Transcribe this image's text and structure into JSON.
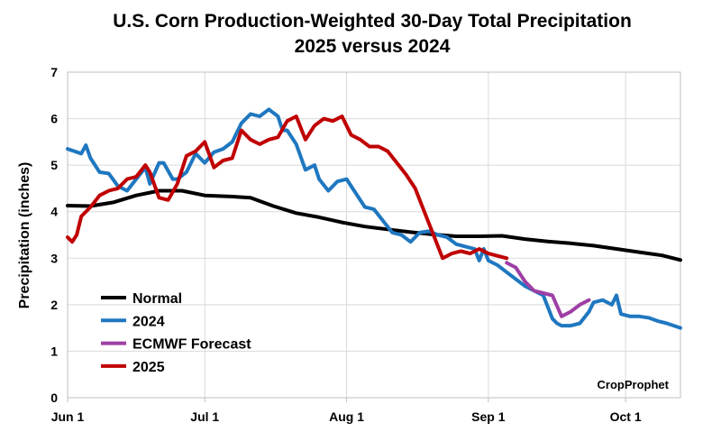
{
  "chart_data": {
    "type": "line",
    "title": "U.S. Corn Production-Weighted 30-Day Total Precipitation",
    "subtitle": "2025 versus 2024",
    "xlabel": "",
    "ylabel": "Precipitation (inches)",
    "ylim": [
      0,
      7
    ],
    "yticks": [
      0,
      1,
      2,
      3,
      4,
      5,
      6,
      7
    ],
    "xlim": [
      0,
      134
    ],
    "xticks": [
      {
        "day": 0,
        "label": "Jun 1"
      },
      {
        "day": 30,
        "label": "Jul 1"
      },
      {
        "day": 61,
        "label": "Aug 1"
      },
      {
        "day": 92,
        "label": "Sep 1"
      },
      {
        "day": 122,
        "label": "Oct 1"
      }
    ],
    "grid": true,
    "legend_position": "bottom-left",
    "credit": "CropProphet",
    "series": [
      {
        "name": "Normal",
        "color": "#000000",
        "x": [
          0,
          5,
          10,
          15,
          20,
          25,
          30,
          35,
          40,
          45,
          50,
          55,
          60,
          65,
          70,
          75,
          80,
          85,
          90,
          95,
          100,
          105,
          110,
          115,
          120,
          125,
          130,
          134
        ],
        "values": [
          4.13,
          4.12,
          4.2,
          4.35,
          4.45,
          4.45,
          4.35,
          4.33,
          4.3,
          4.12,
          3.97,
          3.88,
          3.77,
          3.68,
          3.62,
          3.56,
          3.51,
          3.47,
          3.47,
          3.48,
          3.41,
          3.36,
          3.32,
          3.27,
          3.2,
          3.13,
          3.06,
          2.96
        ]
      },
      {
        "name": "2024",
        "color": "#1f77c0",
        "x": [
          0,
          3,
          4,
          5,
          7,
          9,
          11,
          13,
          15,
          17,
          18,
          20,
          21,
          23,
          24,
          26,
          28,
          30,
          32,
          34,
          36,
          38,
          40,
          42,
          44,
          46,
          47,
          48,
          50,
          52,
          54,
          55,
          57,
          59,
          61,
          63,
          65,
          67,
          69,
          71,
          73,
          75,
          77,
          79,
          81,
          83,
          85,
          87,
          89,
          90,
          91,
          92,
          94,
          96,
          98,
          100,
          102,
          104,
          106,
          107,
          108,
          110,
          112,
          114,
          115,
          117,
          119,
          120,
          121,
          123,
          125,
          127,
          129,
          131,
          134
        ],
        "values": [
          5.35,
          5.25,
          5.43,
          5.15,
          4.85,
          4.82,
          4.55,
          4.45,
          4.7,
          4.95,
          4.6,
          5.05,
          5.05,
          4.7,
          4.7,
          4.85,
          5.25,
          5.05,
          5.28,
          5.35,
          5.5,
          5.9,
          6.1,
          6.05,
          6.2,
          6.05,
          5.75,
          5.75,
          5.45,
          4.9,
          5.0,
          4.7,
          4.45,
          4.65,
          4.7,
          4.4,
          4.1,
          4.05,
          3.8,
          3.55,
          3.5,
          3.35,
          3.55,
          3.58,
          3.5,
          3.45,
          3.3,
          3.25,
          3.2,
          2.95,
          3.2,
          2.95,
          2.85,
          2.7,
          2.55,
          2.4,
          2.3,
          2.2,
          1.7,
          1.6,
          1.55,
          1.55,
          1.6,
          1.85,
          2.05,
          2.1,
          2.0,
          2.2,
          1.8,
          1.75,
          1.75,
          1.72,
          1.65,
          1.6,
          1.5
        ]
      },
      {
        "name": "ECMWF Forecast",
        "color": "#9e3fa5",
        "x": [
          96,
          98,
          100,
          102,
          104,
          106,
          108,
          110,
          112,
          114
        ],
        "values": [
          2.9,
          2.8,
          2.5,
          2.3,
          2.25,
          2.2,
          1.75,
          1.85,
          2.0,
          2.1
        ]
      },
      {
        "name": "2025",
        "color": "#c00000",
        "x": [
          0,
          1,
          2,
          3,
          5,
          7,
          9,
          11,
          13,
          15,
          17,
          18,
          20,
          22,
          24,
          26,
          28,
          30,
          32,
          34,
          36,
          38,
          40,
          42,
          44,
          46,
          48,
          50,
          52,
          54,
          56,
          58,
          60,
          62,
          64,
          66,
          68,
          70,
          72,
          74,
          76,
          78,
          80,
          82,
          84,
          86,
          88,
          90,
          92,
          94,
          96
        ],
        "values": [
          3.45,
          3.35,
          3.5,
          3.9,
          4.1,
          4.35,
          4.45,
          4.5,
          4.7,
          4.75,
          5.0,
          4.85,
          4.3,
          4.25,
          4.6,
          5.2,
          5.3,
          5.5,
          4.95,
          5.1,
          5.15,
          5.75,
          5.55,
          5.45,
          5.55,
          5.6,
          5.95,
          6.05,
          5.55,
          5.85,
          6.0,
          5.95,
          6.05,
          5.65,
          5.55,
          5.4,
          5.4,
          5.3,
          5.05,
          4.8,
          4.5,
          4.0,
          3.5,
          3.0,
          3.1,
          3.15,
          3.1,
          3.2,
          3.1,
          3.05,
          3.0
        ]
      }
    ]
  }
}
